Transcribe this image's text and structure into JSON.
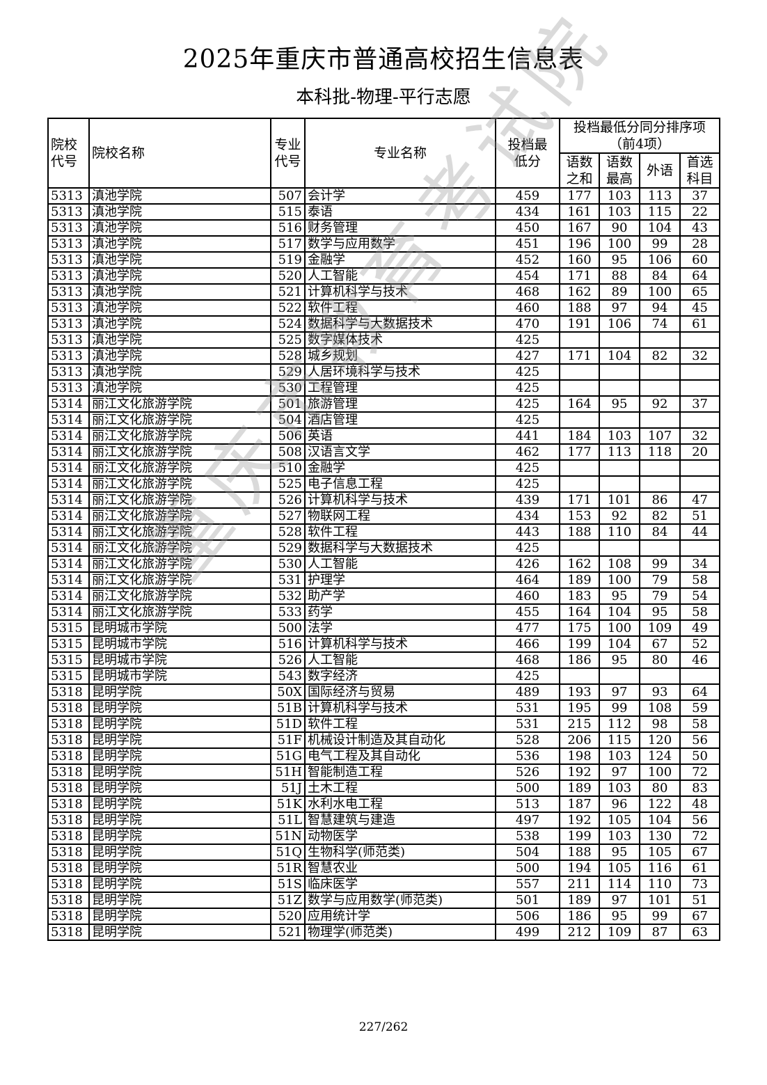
{
  "title": "2025年重庆市普通高校招生信息表",
  "subtitle": "本科批-物理-平行志愿",
  "watermark": "重庆市教育考试院",
  "page_number": "227/262",
  "headers": {
    "school_code": "院校代号",
    "school_name": "院校名称",
    "major_code": "专业代号",
    "major_name": "专业名称",
    "min_score": "投档最低分",
    "tiebreak_group": "投档最低分同分排序项（前4项）",
    "chinese_math_sum": "语数之和",
    "chinese_math_max": "语数最高",
    "foreign_lang": "外语",
    "first_subject": "首选科目"
  },
  "rows": [
    [
      "5313",
      "滇池学院",
      "507",
      "会计学",
      "459",
      "177",
      "103",
      "113",
      "37"
    ],
    [
      "5313",
      "滇池学院",
      "515",
      "泰语",
      "434",
      "161",
      "103",
      "115",
      "22"
    ],
    [
      "5313",
      "滇池学院",
      "516",
      "财务管理",
      "450",
      "167",
      "90",
      "104",
      "43"
    ],
    [
      "5313",
      "滇池学院",
      "517",
      "数学与应用数学",
      "451",
      "196",
      "100",
      "99",
      "28"
    ],
    [
      "5313",
      "滇池学院",
      "519",
      "金融学",
      "452",
      "160",
      "95",
      "106",
      "60"
    ],
    [
      "5313",
      "滇池学院",
      "520",
      "人工智能",
      "454",
      "171",
      "88",
      "84",
      "64"
    ],
    [
      "5313",
      "滇池学院",
      "521",
      "计算机科学与技术",
      "468",
      "162",
      "89",
      "100",
      "65"
    ],
    [
      "5313",
      "滇池学院",
      "522",
      "软件工程",
      "460",
      "188",
      "97",
      "94",
      "45"
    ],
    [
      "5313",
      "滇池学院",
      "524",
      "数据科学与大数据技术",
      "470",
      "191",
      "106",
      "74",
      "61"
    ],
    [
      "5313",
      "滇池学院",
      "525",
      "数字媒体技术",
      "425",
      "",
      "",
      "",
      ""
    ],
    [
      "5313",
      "滇池学院",
      "528",
      "城乡规划",
      "427",
      "171",
      "104",
      "82",
      "32"
    ],
    [
      "5313",
      "滇池学院",
      "529",
      "人居环境科学与技术",
      "425",
      "",
      "",
      "",
      ""
    ],
    [
      "5313",
      "滇池学院",
      "530",
      "工程管理",
      "425",
      "",
      "",
      "",
      ""
    ],
    [
      "5314",
      "丽江文化旅游学院",
      "501",
      "旅游管理",
      "425",
      "164",
      "95",
      "92",
      "37"
    ],
    [
      "5314",
      "丽江文化旅游学院",
      "504",
      "酒店管理",
      "425",
      "",
      "",
      "",
      ""
    ],
    [
      "5314",
      "丽江文化旅游学院",
      "506",
      "英语",
      "441",
      "184",
      "103",
      "107",
      "32"
    ],
    [
      "5314",
      "丽江文化旅游学院",
      "508",
      "汉语言文学",
      "462",
      "177",
      "113",
      "118",
      "20"
    ],
    [
      "5314",
      "丽江文化旅游学院",
      "510",
      "金融学",
      "425",
      "",
      "",
      "",
      ""
    ],
    [
      "5314",
      "丽江文化旅游学院",
      "525",
      "电子信息工程",
      "425",
      "",
      "",
      "",
      ""
    ],
    [
      "5314",
      "丽江文化旅游学院",
      "526",
      "计算机科学与技术",
      "439",
      "171",
      "101",
      "86",
      "47"
    ],
    [
      "5314",
      "丽江文化旅游学院",
      "527",
      "物联网工程",
      "434",
      "153",
      "92",
      "82",
      "51"
    ],
    [
      "5314",
      "丽江文化旅游学院",
      "528",
      "软件工程",
      "443",
      "188",
      "110",
      "84",
      "44"
    ],
    [
      "5314",
      "丽江文化旅游学院",
      "529",
      "数据科学与大数据技术",
      "425",
      "",
      "",
      "",
      ""
    ],
    [
      "5314",
      "丽江文化旅游学院",
      "530",
      "人工智能",
      "426",
      "162",
      "108",
      "99",
      "34"
    ],
    [
      "5314",
      "丽江文化旅游学院",
      "531",
      "护理学",
      "464",
      "189",
      "100",
      "79",
      "58"
    ],
    [
      "5314",
      "丽江文化旅游学院",
      "532",
      "助产学",
      "460",
      "183",
      "95",
      "79",
      "54"
    ],
    [
      "5314",
      "丽江文化旅游学院",
      "533",
      "药学",
      "455",
      "164",
      "104",
      "95",
      "58"
    ],
    [
      "5315",
      "昆明城市学院",
      "500",
      "法学",
      "477",
      "175",
      "100",
      "109",
      "49"
    ],
    [
      "5315",
      "昆明城市学院",
      "516",
      "计算机科学与技术",
      "466",
      "199",
      "104",
      "67",
      "52"
    ],
    [
      "5315",
      "昆明城市学院",
      "526",
      "人工智能",
      "468",
      "186",
      "95",
      "80",
      "46"
    ],
    [
      "5315",
      "昆明城市学院",
      "543",
      "数字经济",
      "425",
      "",
      "",
      "",
      ""
    ],
    [
      "5318",
      "昆明学院",
      "50X",
      "国际经济与贸易",
      "489",
      "193",
      "97",
      "93",
      "64"
    ],
    [
      "5318",
      "昆明学院",
      "51B",
      "计算机科学与技术",
      "531",
      "195",
      "99",
      "108",
      "59"
    ],
    [
      "5318",
      "昆明学院",
      "51D",
      "软件工程",
      "531",
      "215",
      "112",
      "98",
      "58"
    ],
    [
      "5318",
      "昆明学院",
      "51F",
      "机械设计制造及其自动化",
      "528",
      "206",
      "115",
      "120",
      "56"
    ],
    [
      "5318",
      "昆明学院",
      "51G",
      "电气工程及其自动化",
      "536",
      "198",
      "103",
      "124",
      "50"
    ],
    [
      "5318",
      "昆明学院",
      "51H",
      "智能制造工程",
      "526",
      "192",
      "97",
      "100",
      "72"
    ],
    [
      "5318",
      "昆明学院",
      "51J",
      "土木工程",
      "500",
      "189",
      "103",
      "80",
      "83"
    ],
    [
      "5318",
      "昆明学院",
      "51K",
      "水利水电工程",
      "513",
      "187",
      "96",
      "122",
      "48"
    ],
    [
      "5318",
      "昆明学院",
      "51L",
      "智慧建筑与建造",
      "497",
      "192",
      "105",
      "104",
      "56"
    ],
    [
      "5318",
      "昆明学院",
      "51N",
      "动物医学",
      "538",
      "199",
      "103",
      "130",
      "72"
    ],
    [
      "5318",
      "昆明学院",
      "51Q",
      "生物科学(师范类)",
      "504",
      "188",
      "95",
      "105",
      "67"
    ],
    [
      "5318",
      "昆明学院",
      "51R",
      "智慧农业",
      "500",
      "194",
      "105",
      "116",
      "61"
    ],
    [
      "5318",
      "昆明学院",
      "51S",
      "临床医学",
      "557",
      "211",
      "114",
      "110",
      "73"
    ],
    [
      "5318",
      "昆明学院",
      "51Z",
      "数学与应用数学(师范类)",
      "501",
      "189",
      "97",
      "101",
      "51"
    ],
    [
      "5318",
      "昆明学院",
      "520",
      "应用统计学",
      "506",
      "186",
      "95",
      "99",
      "67"
    ],
    [
      "5318",
      "昆明学院",
      "521",
      "物理学(师范类)",
      "499",
      "212",
      "109",
      "87",
      "63"
    ]
  ]
}
